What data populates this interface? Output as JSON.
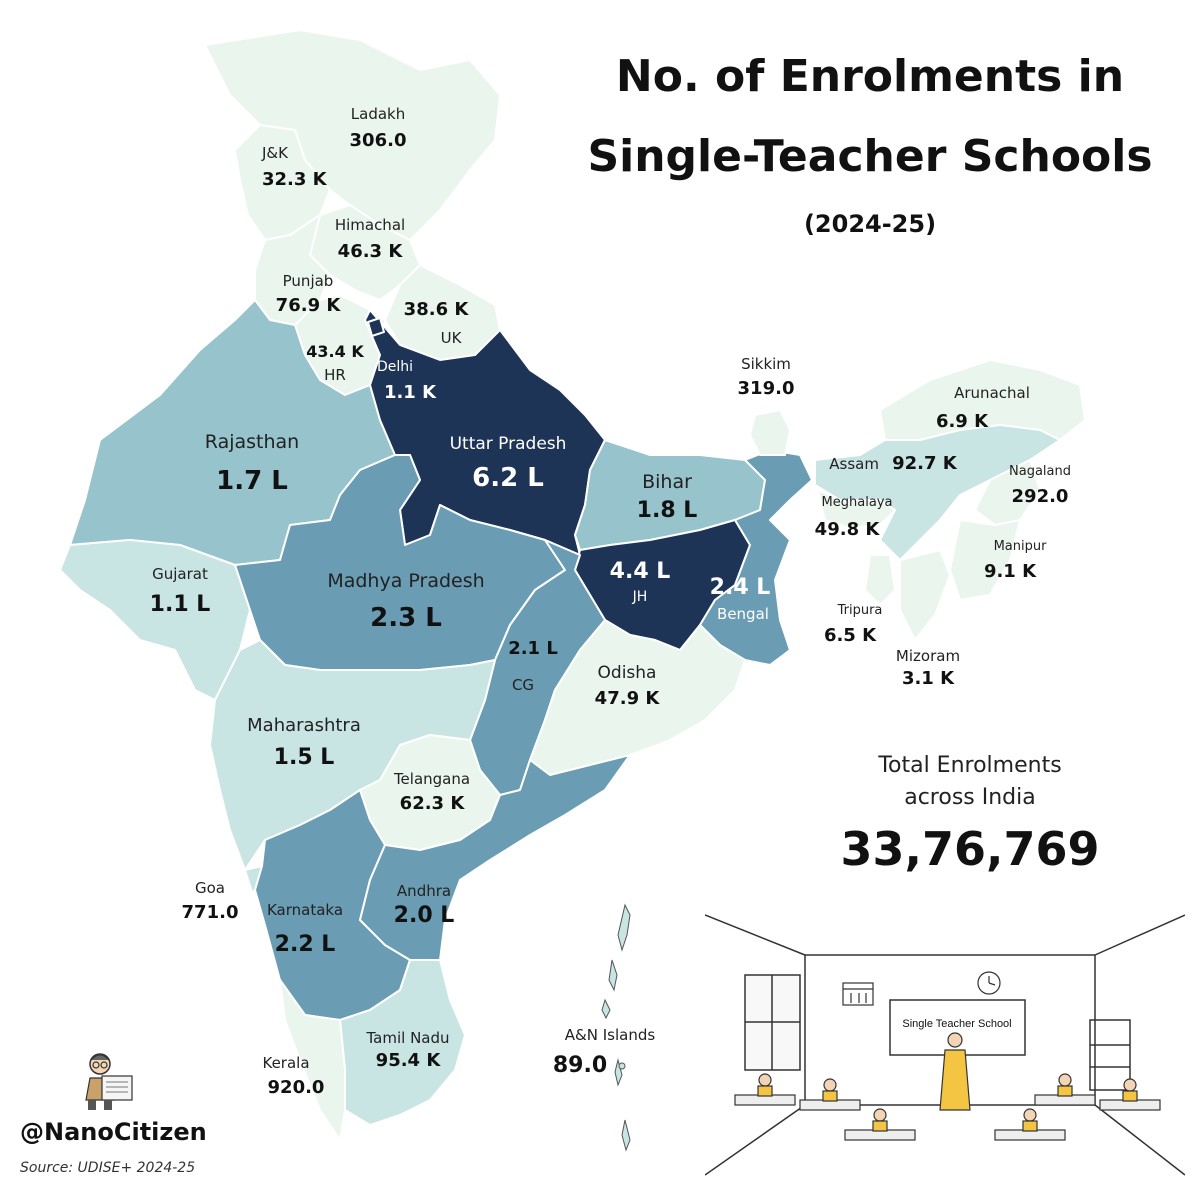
{
  "title_line1": "No. of Enrolments in",
  "title_line2": "Single-Teacher Schools",
  "subtitle": "(2024-25)",
  "total": {
    "label_line1": "Total Enrolments",
    "label_line2": "across India",
    "value": "33,76,769"
  },
  "handle": "@NanoCitizen",
  "source": "Source: UDISE+ 2024-25",
  "classroom_sign": "Single Teacher School",
  "colors": {
    "very_light": "#eaf5ee",
    "light": "#c8e4e3",
    "medium": "#96c3cc",
    "medium_dark": "#6a9cb4",
    "dark": "#1e3457",
    "border": "#ffffff"
  },
  "icons": [
    "reader-avatar-icon",
    "classroom-illustration-icon",
    "calendar-icon",
    "clock-icon"
  ],
  "regions": {
    "ladakh": {
      "name": "Ladakh",
      "value": "306.0"
    },
    "jk": {
      "name": "J&K",
      "value": "32.3 K"
    },
    "himachal": {
      "name": "Himachal",
      "value": "46.3 K"
    },
    "punjab": {
      "name": "Punjab",
      "value": "76.9 K"
    },
    "uk": {
      "name": "UK",
      "value": "38.6 K"
    },
    "hr": {
      "name": "HR",
      "value": "43.4 K"
    },
    "delhi": {
      "name": "Delhi",
      "value": "1.1 K"
    },
    "rajasthan": {
      "name": "Rajasthan",
      "value": "1.7 L"
    },
    "up": {
      "name": "Uttar Pradesh",
      "value": "6.2 L"
    },
    "bihar": {
      "name": "Bihar",
      "value": "1.8 L"
    },
    "sikkim": {
      "name": "Sikkim",
      "value": "319.0"
    },
    "arunachal": {
      "name": "Arunachal",
      "value": "6.9 K"
    },
    "assam": {
      "name": "Assam",
      "value": "92.7 K"
    },
    "nagaland": {
      "name": "Nagaland",
      "value": "292.0"
    },
    "meghalaya": {
      "name": "Meghalaya",
      "value": "49.8 K"
    },
    "manipur": {
      "name": "Manipur",
      "value": "9.1 K"
    },
    "tripura": {
      "name": "Tripura",
      "value": "6.5 K"
    },
    "mizoram": {
      "name": "Mizoram",
      "value": "3.1 K"
    },
    "gujarat": {
      "name": "Gujarat",
      "value": "1.1 L"
    },
    "mp": {
      "name": "Madhya Pradesh",
      "value": "2.3 L"
    },
    "jh": {
      "name": "JH",
      "value": "4.4 L"
    },
    "bengal": {
      "name": "Bengal",
      "value": "2.4 L"
    },
    "cg": {
      "name": "CG",
      "value": "2.1 L"
    },
    "odisha": {
      "name": "Odisha",
      "value": "47.9 K"
    },
    "maharashtra": {
      "name": "Maharashtra",
      "value": "1.5 L"
    },
    "telangana": {
      "name": "Telangana",
      "value": "62.3 K"
    },
    "goa": {
      "name": "Goa",
      "value": "771.0"
    },
    "karnataka": {
      "name": "Karnataka",
      "value": "2.2 L"
    },
    "andhra": {
      "name": "Andhra",
      "value": "2.0 L"
    },
    "kerala": {
      "name": "Kerala",
      "value": "920.0"
    },
    "tn": {
      "name": "Tamil Nadu",
      "value": "95.4 K"
    },
    "an": {
      "name": "A&N Islands",
      "value": "89.0"
    }
  }
}
